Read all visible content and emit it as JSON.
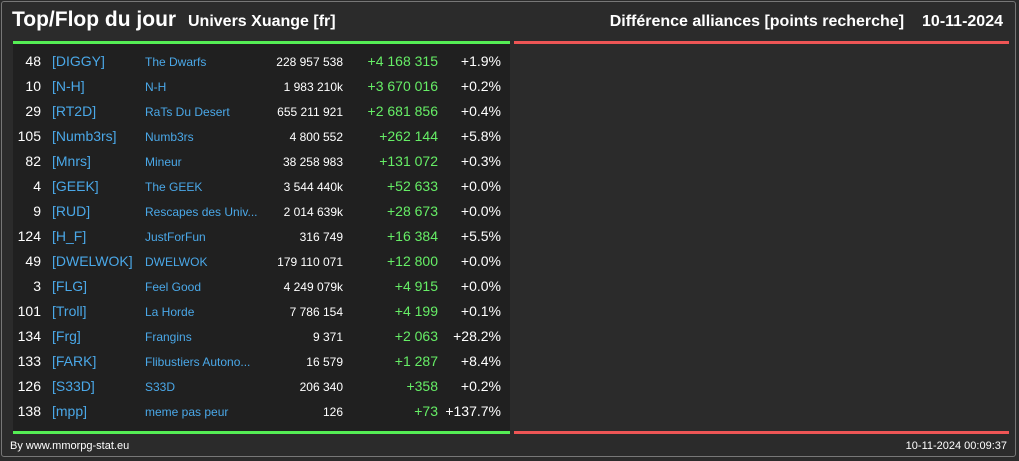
{
  "header": {
    "title": "Top/Flop du jour",
    "universe": "Univers Xuange [fr]",
    "subtitle": "Différence alliances [points recherche]",
    "date": "10-11-2024"
  },
  "rows": [
    {
      "rank": "48",
      "tag": "[DIGGY]",
      "name": "The Dwarfs",
      "points": "228 957 538",
      "diff": "+4 168 315",
      "pct": "+1.9%"
    },
    {
      "rank": "10",
      "tag": "[N-H]",
      "name": "N-H",
      "points": "1 983 210k",
      "diff": "+3 670 016",
      "pct": "+0.2%"
    },
    {
      "rank": "29",
      "tag": "[RT2D]",
      "name": "RaTs Du Desert",
      "points": "655 211 921",
      "diff": "+2 681 856",
      "pct": "+0.4%"
    },
    {
      "rank": "105",
      "tag": "[Numb3rs]",
      "name": "Numb3rs",
      "points": "4 800 552",
      "diff": "+262 144",
      "pct": "+5.8%"
    },
    {
      "rank": "82",
      "tag": "[Mnrs]",
      "name": "Mineur",
      "points": "38 258 983",
      "diff": "+131 072",
      "pct": "+0.3%"
    },
    {
      "rank": "4",
      "tag": "[GEEK]",
      "name": "The GEEK",
      "points": "3 544 440k",
      "diff": "+52 633",
      "pct": "+0.0%"
    },
    {
      "rank": "9",
      "tag": "[RUD]",
      "name": "Rescapes des Univ...",
      "points": "2 014 639k",
      "diff": "+28 673",
      "pct": "+0.0%"
    },
    {
      "rank": "124",
      "tag": "[H_F]",
      "name": "JustForFun",
      "points": "316 749",
      "diff": "+16 384",
      "pct": "+5.5%"
    },
    {
      "rank": "49",
      "tag": "[DWELWOK]",
      "name": "DWELWOK",
      "points": "179 110 071",
      "diff": "+12 800",
      "pct": "+0.0%"
    },
    {
      "rank": "3",
      "tag": "[FLG]",
      "name": "Feel Good",
      "points": "4 249 079k",
      "diff": "+4 915",
      "pct": "+0.0%"
    },
    {
      "rank": "101",
      "tag": "[Troll]",
      "name": "La Horde",
      "points": "7 786 154",
      "diff": "+4 199",
      "pct": "+0.1%"
    },
    {
      "rank": "134",
      "tag": "[Frg]",
      "name": "Frangins",
      "points": "9 371",
      "diff": "+2 063",
      "pct": "+28.2%"
    },
    {
      "rank": "133",
      "tag": "[FARK]",
      "name": "Flibustiers Autono...",
      "points": "16 579",
      "diff": "+1 287",
      "pct": "+8.4%"
    },
    {
      "rank": "126",
      "tag": "[S33D]",
      "name": "S33D",
      "points": "206 340",
      "diff": "+358",
      "pct": "+0.2%"
    },
    {
      "rank": "138",
      "tag": "[mpp]",
      "name": "meme pas peur",
      "points": "126",
      "diff": "+73",
      "pct": "+137.7%"
    }
  ],
  "footer": {
    "credit": "By www.mmorpg-stat.eu",
    "timestamp": "10-11-2024 00:09:37"
  },
  "colors": {
    "top_accent": "#55ee55",
    "flop_accent": "#ee5555",
    "tag_color": "#4aa8e8",
    "diff_color": "#66ee66"
  }
}
